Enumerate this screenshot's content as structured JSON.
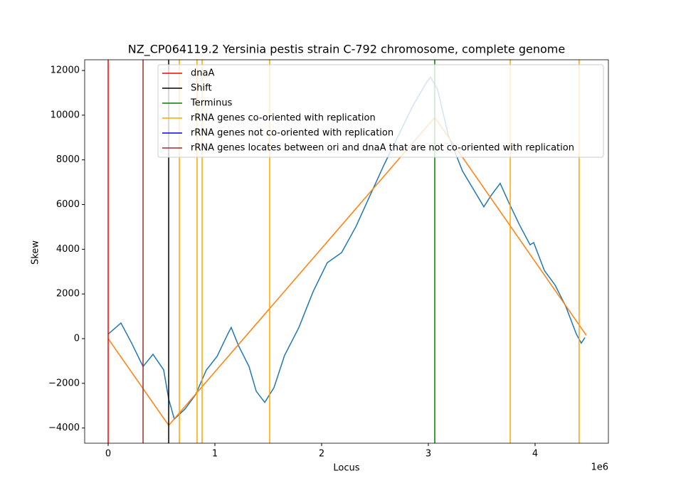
{
  "chart_data": {
    "type": "line",
    "title": "NZ_CP064119.2 Yersinia pestis strain C-792 chromosome, complete genome",
    "xlabel": "Locus",
    "ylabel": "Skew",
    "x_offset_label": "1e6",
    "xlim": [
      -220000,
      4687000
    ],
    "ylim": [
      -4680,
      12480
    ],
    "xticks": [
      {
        "value": 0,
        "label": "0"
      },
      {
        "value": 1000000,
        "label": "1"
      },
      {
        "value": 2000000,
        "label": "2"
      },
      {
        "value": 3000000,
        "label": "3"
      },
      {
        "value": 4000000,
        "label": "4"
      }
    ],
    "yticks": [
      {
        "value": -4000,
        "label": "−4000"
      },
      {
        "value": -2000,
        "label": "−2000"
      },
      0,
      2000,
      4000,
      6000,
      8000,
      10000,
      12000
    ],
    "grid": false,
    "legend": "upper right",
    "series": [
      {
        "color": "#1f77b4",
        "x": [
          0,
          120000,
          220000,
          327000,
          420000,
          520000,
          567000,
          620000,
          720000,
          820000,
          920000,
          1020000,
          1120000,
          1153000,
          1220000,
          1320000,
          1387000,
          1467000,
          1553000,
          1653000,
          1787000,
          1920000,
          2053000,
          2187000,
          2320000,
          2453000,
          2587000,
          2720000,
          2853000,
          2987000,
          3020000,
          3087000,
          3187000,
          3320000,
          3420000,
          3520000,
          3587000,
          3673000,
          3753000,
          3853000,
          3953000,
          3987000,
          4087000,
          4187000,
          4287000,
          4387000,
          4433000,
          4467000
        ],
        "values": [
          200,
          700,
          -200,
          -1250,
          -700,
          -1400,
          -2700,
          -3600,
          -3150,
          -2500,
          -1400,
          -800,
          200,
          500,
          -300,
          -1250,
          -2350,
          -2850,
          -2200,
          -750,
          500,
          2100,
          3400,
          3850,
          5000,
          6400,
          7800,
          9100,
          10400,
          11500,
          11700,
          11150,
          9100,
          7500,
          6700,
          5900,
          6400,
          6950,
          6100,
          5100,
          4200,
          4300,
          3050,
          2400,
          1450,
          200,
          -200,
          50
        ]
      },
      {
        "color": "#ff7f0e",
        "x": [
          0,
          567000,
          3060000,
          4480000
        ],
        "values": [
          0,
          -3880,
          9900,
          150
        ]
      }
    ],
    "vlines": [
      {
        "name": "dnaA",
        "color": "#ff0000",
        "x": [
          0
        ]
      },
      {
        "name": "Shift",
        "color": "#000000",
        "x": [
          567000
        ]
      },
      {
        "name": "Terminus",
        "color": "#008000",
        "x": [
          3060000
        ]
      },
      {
        "name": "rRNA genes co-oriented with replication",
        "color": "#ffa500",
        "x": [
          667000,
          833000,
          880000,
          1513000,
          3767000,
          4413000
        ]
      },
      {
        "name": "rRNA genes not co-oriented with replication",
        "color": "#0000ff",
        "x": []
      },
      {
        "name": "rRNA genes locates between ori and dnaA that are not co-oriented with replication",
        "color": "#a52a2a",
        "x": [
          327000
        ]
      }
    ]
  }
}
